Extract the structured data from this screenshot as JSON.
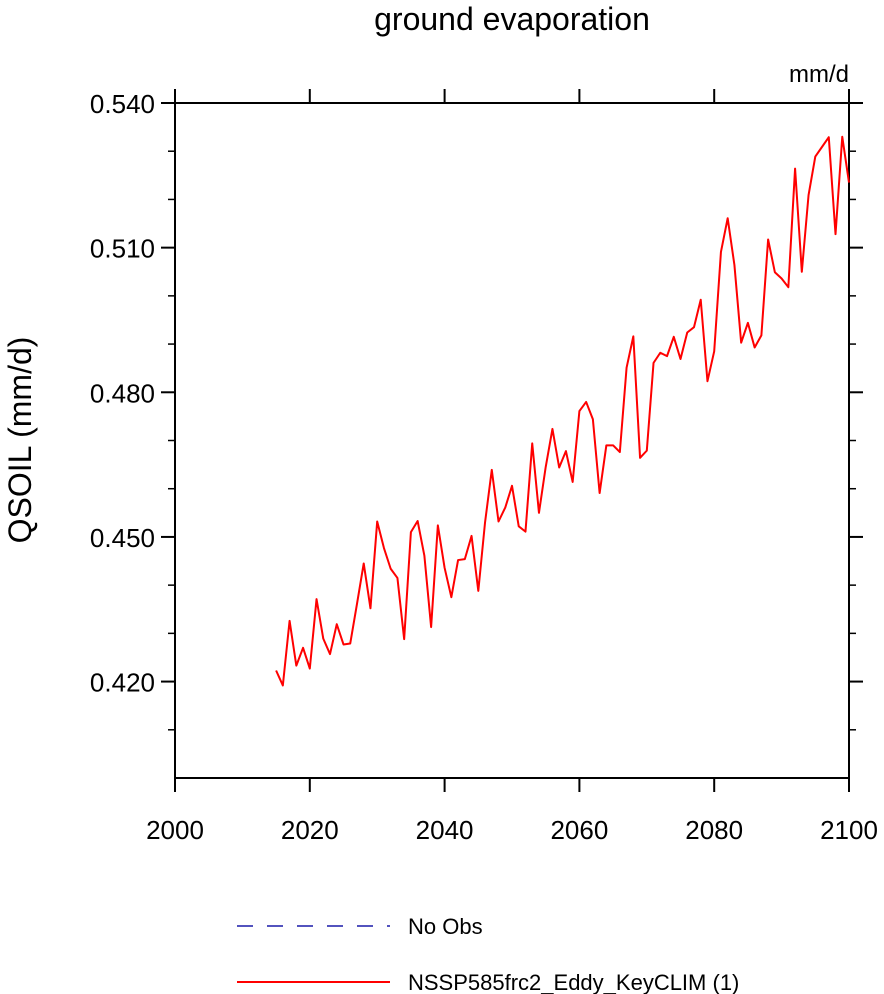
{
  "chart_data": {
    "type": "line",
    "title": "ground evaporation",
    "units_label": "mm/d",
    "xlabel": "",
    "ylabel": "QSOIL  (mm/d)",
    "xlim": [
      2000,
      2100
    ],
    "ylim": [
      0.4,
      0.54
    ],
    "x_ticks": [
      2000,
      2020,
      2040,
      2060,
      2080,
      2100
    ],
    "x_tick_labels": [
      "2000",
      "2020",
      "2040",
      "2060",
      "2080",
      "2100"
    ],
    "y_ticks": [
      0.42,
      0.45,
      0.48,
      0.51,
      0.54
    ],
    "y_tick_labels": [
      "0.420",
      "0.450",
      "0.480",
      "0.510",
      "0.540"
    ],
    "grid": false,
    "legend_position": "bottom",
    "series": [
      {
        "name": "No Obs",
        "color": "#1a1aa8",
        "dash": "dashed",
        "x": [],
        "values": []
      },
      {
        "name": "NSSP585frc2_Eddy_KeyCLIM (1)",
        "color": "#ff0000",
        "dash": "solid",
        "x": [
          2015,
          2016,
          2017,
          2018,
          2019,
          2020,
          2021,
          2022,
          2023,
          2024,
          2025,
          2026,
          2027,
          2028,
          2029,
          2030,
          2031,
          2032,
          2033,
          2034,
          2035,
          2036,
          2037,
          2038,
          2039,
          2040,
          2041,
          2042,
          2043,
          2044,
          2045,
          2046,
          2047,
          2048,
          2049,
          2050,
          2051,
          2052,
          2053,
          2054,
          2055,
          2056,
          2057,
          2058,
          2059,
          2060,
          2061,
          2062,
          2063,
          2064,
          2065,
          2066,
          2067,
          2068,
          2069,
          2070,
          2071,
          2072,
          2073,
          2074,
          2075,
          2076,
          2077,
          2078,
          2079,
          2080,
          2081,
          2082,
          2083,
          2084,
          2085,
          2086,
          2087,
          2088,
          2089,
          2090,
          2091,
          2092,
          2093,
          2094,
          2095,
          2096,
          2097,
          2098,
          2099,
          2100
        ],
        "values": [
          0.4223,
          0.4192,
          0.4326,
          0.4233,
          0.427,
          0.4227,
          0.4371,
          0.4289,
          0.4257,
          0.4319,
          0.4277,
          0.4279,
          0.4361,
          0.4445,
          0.4352,
          0.4532,
          0.4477,
          0.4434,
          0.4415,
          0.4288,
          0.451,
          0.4533,
          0.4461,
          0.4313,
          0.4524,
          0.4436,
          0.4375,
          0.4452,
          0.4454,
          0.4502,
          0.4388,
          0.453,
          0.4639,
          0.4532,
          0.4561,
          0.4606,
          0.4522,
          0.4511,
          0.4694,
          0.455,
          0.4645,
          0.4724,
          0.4644,
          0.4678,
          0.4614,
          0.4761,
          0.478,
          0.4744,
          0.4591,
          0.469,
          0.469,
          0.4676,
          0.4851,
          0.4916,
          0.4664,
          0.4679,
          0.4861,
          0.4882,
          0.4875,
          0.4915,
          0.4869,
          0.4924,
          0.4935,
          0.4992,
          0.4823,
          0.4885,
          0.5091,
          0.5161,
          0.5064,
          0.4903,
          0.4944,
          0.4893,
          0.4918,
          0.5117,
          0.5049,
          0.5036,
          0.5018,
          0.5264,
          0.505,
          0.5209,
          0.5289,
          0.5309,
          0.5329,
          0.5128,
          0.533,
          0.5235
        ]
      }
    ]
  }
}
